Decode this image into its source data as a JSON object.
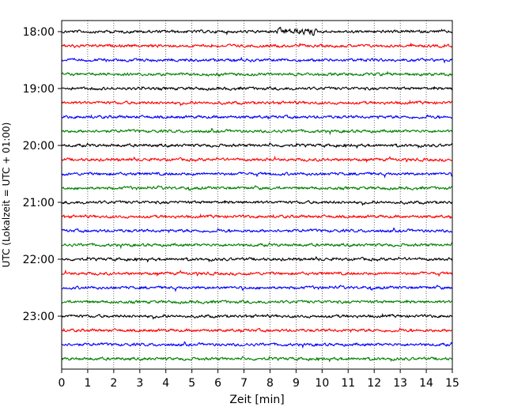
{
  "chart_data": {
    "type": "line",
    "title": "",
    "xlabel": "Zeit  [min]",
    "ylabel": "UTC (Lokalzeit = UTC + 01:00)",
    "xlim": [
      0,
      15
    ],
    "x_ticks": [
      0,
      1,
      2,
      3,
      4,
      5,
      6,
      7,
      8,
      9,
      10,
      11,
      12,
      13,
      14,
      15
    ],
    "y_ticks": [
      "18:00",
      "19:00",
      "20:00",
      "21:00",
      "22:00",
      "23:00"
    ],
    "grid": "vertical-dotted",
    "legend": "none",
    "trace_interval_minutes": 15,
    "start_time": "18:00",
    "colors": [
      "#000000",
      "#ff0000",
      "#0000ff",
      "#008000"
    ],
    "traces": [
      {
        "time": "18:00",
        "color": "#000000"
      },
      {
        "time": "18:15",
        "color": "#ff0000"
      },
      {
        "time": "18:30",
        "color": "#0000ff"
      },
      {
        "time": "18:45",
        "color": "#008000"
      },
      {
        "time": "19:00",
        "color": "#000000"
      },
      {
        "time": "19:15",
        "color": "#ff0000"
      },
      {
        "time": "19:30",
        "color": "#0000ff"
      },
      {
        "time": "19:45",
        "color": "#008000"
      },
      {
        "time": "20:00",
        "color": "#000000"
      },
      {
        "time": "20:15",
        "color": "#ff0000"
      },
      {
        "time": "20:30",
        "color": "#0000ff"
      },
      {
        "time": "20:45",
        "color": "#008000"
      },
      {
        "time": "21:00",
        "color": "#000000"
      },
      {
        "time": "21:15",
        "color": "#ff0000"
      },
      {
        "time": "21:30",
        "color": "#0000ff"
      },
      {
        "time": "21:45",
        "color": "#008000"
      },
      {
        "time": "22:00",
        "color": "#000000"
      },
      {
        "time": "22:15",
        "color": "#ff0000"
      },
      {
        "time": "22:30",
        "color": "#0000ff"
      },
      {
        "time": "22:45",
        "color": "#008000"
      },
      {
        "time": "23:00",
        "color": "#000000"
      },
      {
        "time": "23:15",
        "color": "#ff0000"
      },
      {
        "time": "23:30",
        "color": "#0000ff"
      },
      {
        "time": "23:45",
        "color": "#008000"
      }
    ]
  }
}
